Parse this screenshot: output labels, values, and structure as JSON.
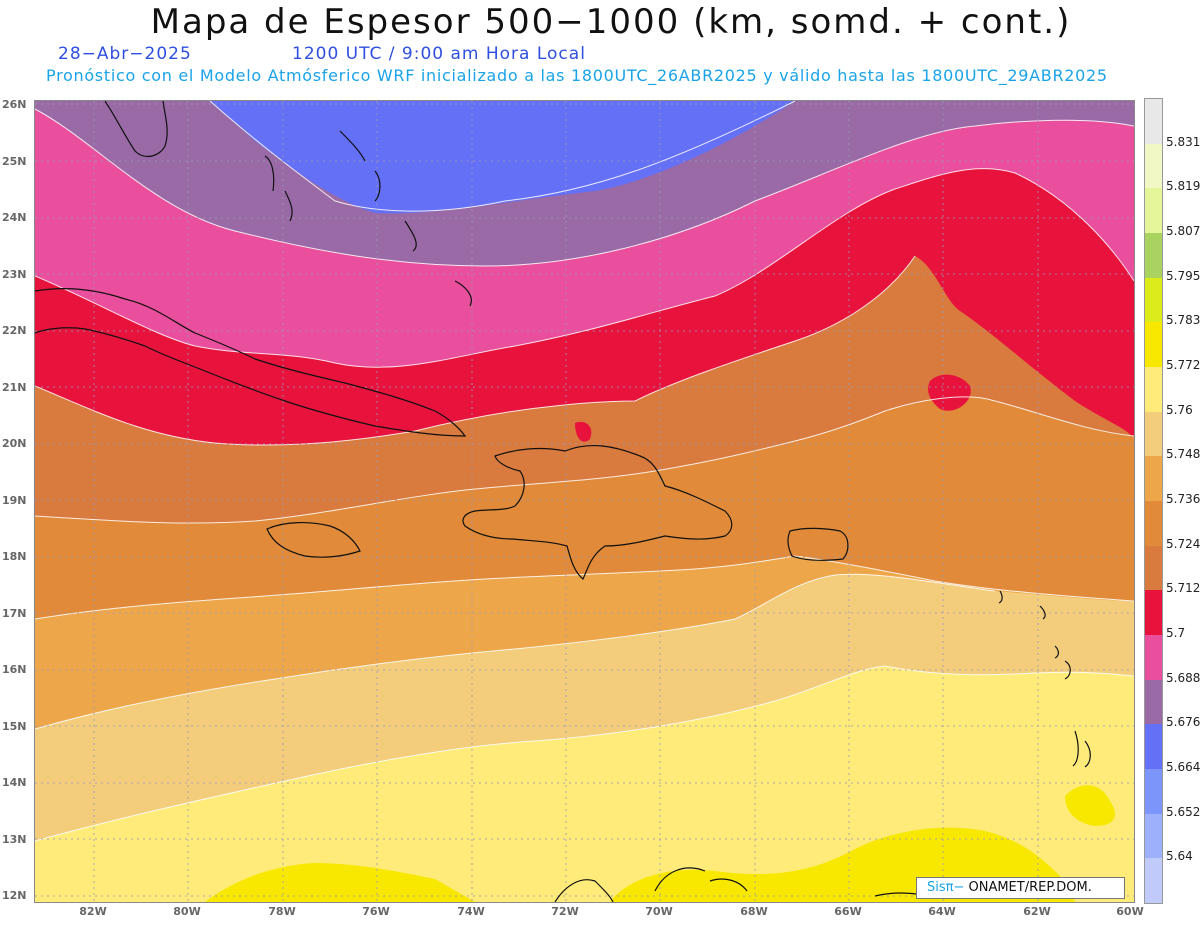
{
  "title": "Mapa de Espesor 500−1000 (km, somd. + cont.)",
  "date": "28−Abr−2025",
  "time": "1200 UTC / 9:00 am Hora Local",
  "subtitle": "Pronóstico con el Modelo Atmósferico WRF inicializado a las 1800UTC_26ABR2025 y válido hasta las  1800UTC_29ABR2025",
  "latitude_labels": [
    "26N",
    "25N",
    "24N",
    "23N",
    "22N",
    "21N",
    "20N",
    "19N",
    "18N",
    "17N",
    "16N",
    "15N",
    "14N",
    "13N",
    "12N"
  ],
  "longitude_labels": [
    "82W",
    "80W",
    "78W",
    "76W",
    "74W",
    "72W",
    "70W",
    "68W",
    "66W",
    "64W",
    "62W",
    "60W"
  ],
  "colorbar": {
    "labels": [
      "5.831",
      "5.819",
      "5.807",
      "5.795",
      "5.783",
      "5.772",
      "5.76",
      "5.748",
      "5.736",
      "5.724",
      "5.712",
      "5.7",
      "5.688",
      "5.676",
      "5.664",
      "5.652",
      "5.64"
    ],
    "colors_top_to_bottom": [
      "#e8e8e8",
      "#f2f7c6",
      "#e4f59a",
      "#aad261",
      "#dceb1c",
      "#f8e800",
      "#ffeb7a",
      "#f3cd7b",
      "#eda74a",
      "#e08a3a",
      "#d97a3e",
      "#e8133c",
      "#e94f9c",
      "#9a6aa6",
      "#6470f5",
      "#7c95fb",
      "#9cb0fb",
      "#c0cbfb"
    ]
  },
  "credit": {
    "sis": "Sisπ−",
    "rest": " ONAMET/REP.DOM."
  },
  "colors": {
    "band_5_676": "#6470f5",
    "band_5_688": "#9a6aa6",
    "band_5_700": "#e94f9c",
    "band_5_712": "#e8133c",
    "band_5_724": "#d97a3e",
    "band_5_736": "#e08a3a",
    "band_5_748": "#eda74a",
    "band_5_760": "#f3cd7b",
    "band_5_772": "#ffeb7a",
    "band_5_783": "#f8e800"
  }
}
